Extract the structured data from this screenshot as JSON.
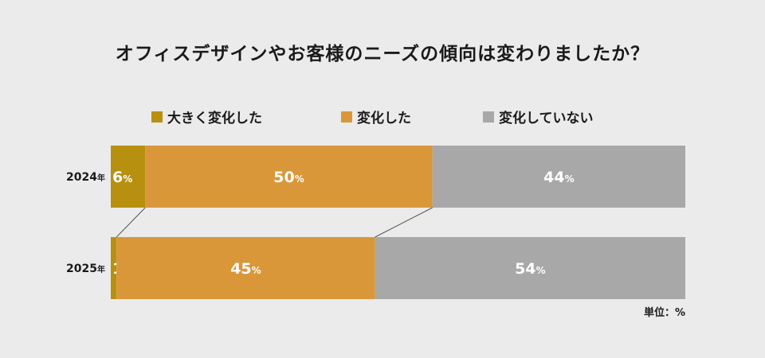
{
  "chart_data": {
    "type": "bar",
    "orientation": "horizontal-stacked-100",
    "title": "オフィスデザインやお客様のニーズの傾向は変わりましたか？",
    "categories": [
      "2024",
      "2025"
    ],
    "category_suffix": "年",
    "value_suffix": "%",
    "series": [
      {
        "name": "大きく変化した",
        "values": [
          6,
          1
        ],
        "color": "#b8900f"
      },
      {
        "name": "変化した",
        "values": [
          50,
          45
        ],
        "color": "#d9973a"
      },
      {
        "name": "変化していない",
        "values": [
          44,
          54
        ],
        "color": "#a9a8a8"
      }
    ],
    "unit_note": "単位：%",
    "legend_position": "top"
  }
}
